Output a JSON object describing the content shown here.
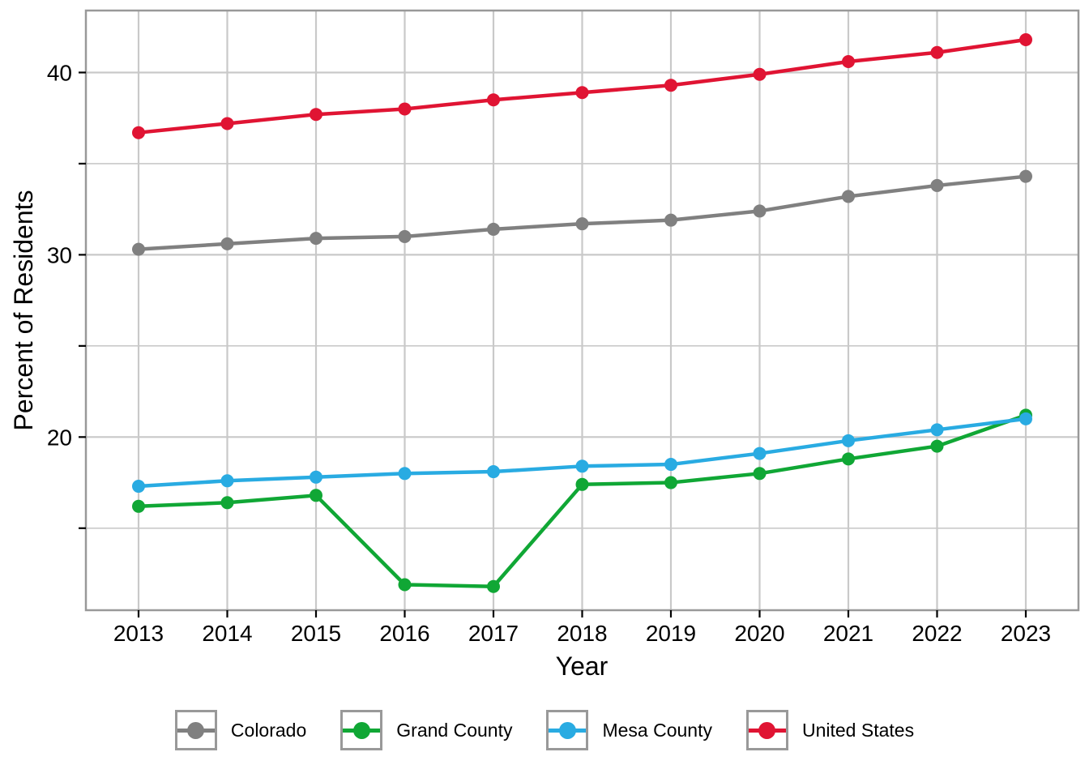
{
  "chart_data": {
    "type": "line",
    "title": "",
    "xlabel": "Year",
    "ylabel": "Percent of Residents",
    "x": [
      "2013",
      "2014",
      "2015",
      "2016",
      "2017",
      "2018",
      "2019",
      "2020",
      "2021",
      "2022",
      "2023"
    ],
    "series": [
      {
        "name": "Colorado",
        "color": "#808080",
        "values": [
          30.3,
          30.6,
          30.9,
          31.0,
          31.4,
          31.7,
          31.9,
          32.4,
          33.2,
          33.8,
          34.3
        ]
      },
      {
        "name": "Grand County",
        "color": "#10A735",
        "values": [
          16.2,
          16.4,
          16.8,
          11.9,
          11.8,
          17.4,
          17.5,
          18.0,
          18.8,
          19.5,
          21.2
        ]
      },
      {
        "name": "Mesa County",
        "color": "#29ABE2",
        "values": [
          17.3,
          17.6,
          17.8,
          18.0,
          18.1,
          18.4,
          18.5,
          19.1,
          19.8,
          20.4,
          21.0
        ]
      },
      {
        "name": "United States",
        "color": "#E01433",
        "values": [
          36.7,
          37.2,
          37.7,
          38.0,
          38.5,
          38.9,
          39.3,
          39.9,
          40.6,
          41.1,
          41.8
        ]
      }
    ],
    "y_ticks_major": [
      20,
      30,
      40
    ],
    "y_ticks_minor": [
      15,
      25,
      35
    ],
    "ylim": [
      10.5,
      43.4
    ],
    "grid": true,
    "legend_position": "bottom",
    "panel_border_color": "#999999",
    "grid_color": "#c9c9c9",
    "tick_color": "#000000"
  }
}
